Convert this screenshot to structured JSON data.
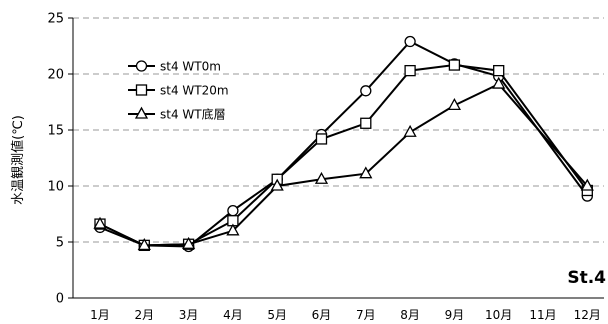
{
  "chart_data": {
    "type": "line",
    "categories": [
      "1月",
      "2月",
      "3月",
      "4月",
      "5月",
      "6月",
      "7月",
      "8月",
      "9月",
      "10月",
      "11月",
      "12月"
    ],
    "series": [
      {
        "name": "st4 WT0m",
        "marker": "circle",
        "values": [
          6.3,
          4.7,
          4.6,
          7.8,
          10.6,
          14.6,
          18.5,
          22.9,
          20.9,
          19.8,
          null,
          9.1
        ]
      },
      {
        "name": "st4 WT20m",
        "marker": "square",
        "values": [
          6.6,
          4.7,
          4.8,
          6.9,
          10.6,
          14.2,
          15.6,
          20.3,
          20.8,
          20.3,
          null,
          9.6
        ]
      },
      {
        "name": "st4 WT底層",
        "marker": "triangle",
        "values": [
          6.6,
          4.7,
          4.8,
          6.0,
          10.0,
          10.6,
          11.1,
          14.8,
          17.2,
          19.1,
          null,
          10.0
        ]
      }
    ],
    "ylabel": "水温観測値(℃)",
    "xlabel": "",
    "ylim": [
      0,
      25
    ],
    "yticks": [
      0,
      5,
      10,
      15,
      20,
      25
    ],
    "grid": "horizontal-dashed",
    "legend_position": "top-left",
    "annotation": "St.4",
    "colors": {
      "line": "#000000",
      "grid": "#999999",
      "marker_fill": "#ffffff"
    }
  }
}
